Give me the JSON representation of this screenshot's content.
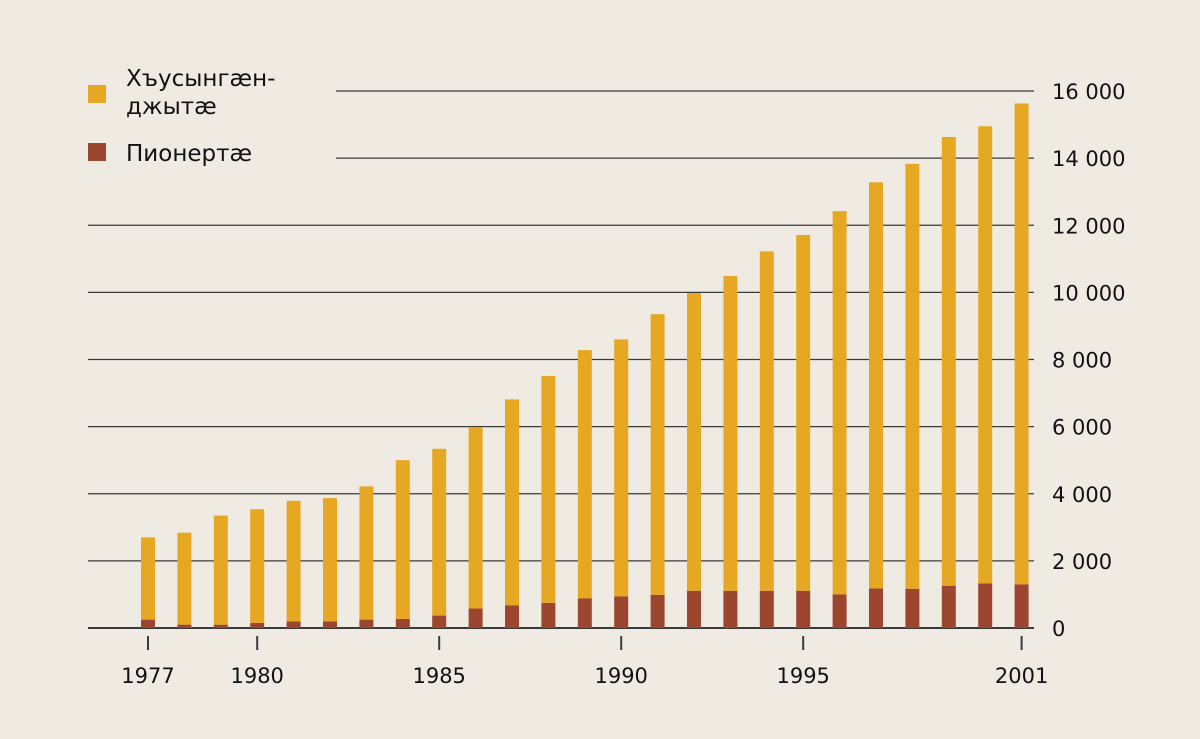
{
  "chart_data": {
    "type": "bar",
    "stacked": true,
    "title": "",
    "xlabel": "",
    "ylabel": "",
    "ylim": [
      0,
      16000
    ],
    "y_axis_side": "right",
    "grid": true,
    "legend_position": "top-left",
    "x": [
      1977,
      1978,
      1979,
      1980,
      1981,
      1982,
      1983,
      1984,
      1985,
      1986,
      1987,
      1988,
      1989,
      1990,
      1991,
      1992,
      1993,
      1994,
      1995,
      1996,
      1997,
      1998,
      1999,
      2000,
      2001
    ],
    "x_tick_labels": [
      "1977",
      "1980",
      "1985",
      "1990",
      "1995",
      "2001"
    ],
    "x_tick_values": [
      1977,
      1980,
      1985,
      1990,
      1995,
      2001
    ],
    "y_tick_labels": [
      "0",
      "2 000",
      "4 000",
      "6 000",
      "8 000",
      "10 000",
      "12 000",
      "14 000",
      "16 000"
    ],
    "y_tick_values": [
      0,
      2000,
      4000,
      6000,
      8000,
      10000,
      12000,
      14000,
      16000
    ],
    "series": [
      {
        "name": "Пионертæ",
        "color": "#9c4630",
        "values": [
          250,
          100,
          100,
          150,
          200,
          200,
          250,
          270,
          370,
          580,
          670,
          750,
          880,
          940,
          990,
          1110,
          1110,
          1110,
          1110,
          1000,
          1180,
          1170,
          1260,
          1330,
          1300
        ]
      },
      {
        "name": "Хъусынгæнджытæ",
        "color": "#e6a823",
        "values": [
          2450,
          2740,
          3250,
          3390,
          3590,
          3670,
          3970,
          4730,
          4970,
          5400,
          6140,
          6760,
          7400,
          7660,
          8360,
          8870,
          9380,
          10110,
          10600,
          11420,
          12100,
          12660,
          13370,
          13620,
          14330
        ]
      }
    ],
    "legend": [
      {
        "label_line1": "Хъусынгæн-",
        "label_line2": "джытæ",
        "color": "#e6a823"
      },
      {
        "label_line1": "Пионертæ",
        "label_line2": "",
        "color": "#9c4630"
      }
    ]
  }
}
